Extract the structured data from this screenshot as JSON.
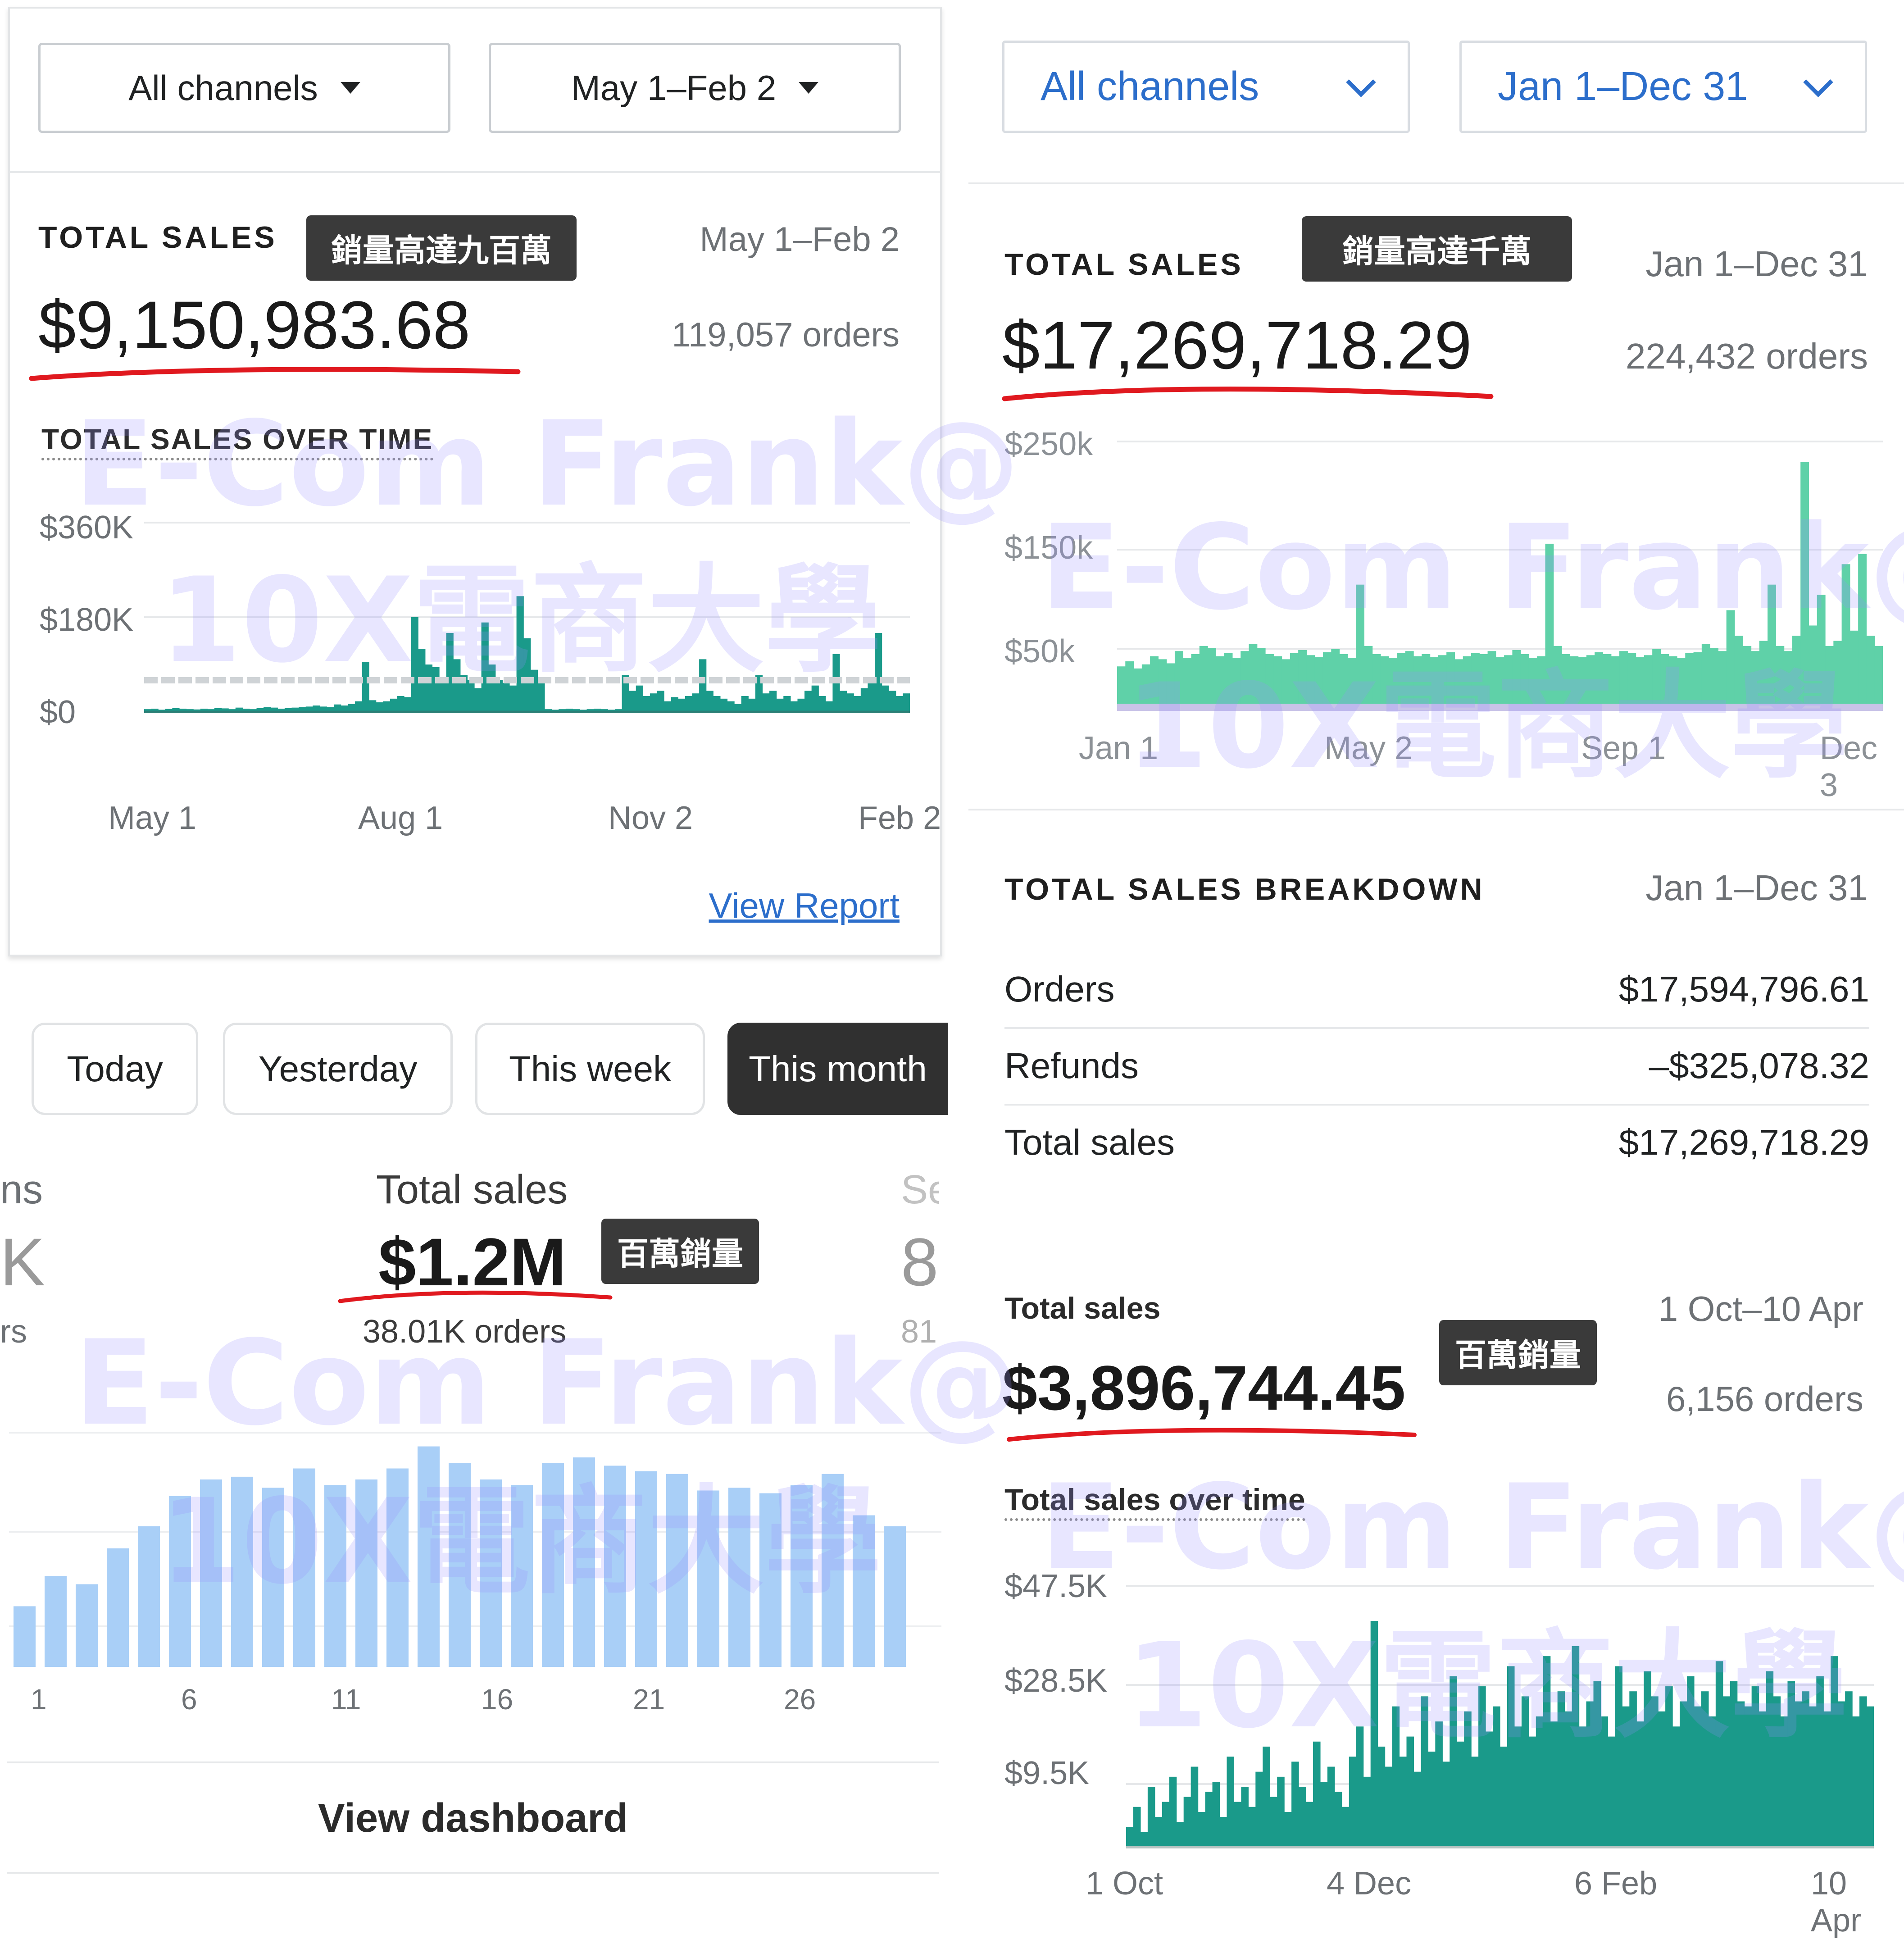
{
  "top_left": {
    "channel_dropdown": "All channels",
    "date_dropdown": "May 1–Feb 2",
    "section_title": "TOTAL SALES",
    "badge": "銷量高達九百萬",
    "date_range": "May 1–Feb 2",
    "total": "$9,150,983.68",
    "orders": "119,057 orders",
    "chart_title": "TOTAL SALES OVER TIME",
    "view_report": "View Report"
  },
  "top_right": {
    "channel_dropdown": "All channels",
    "date_dropdown": "Jan 1–Dec 31",
    "section_title": "TOTAL SALES",
    "badge": "銷量高達千萬",
    "date_range": "Jan 1–Dec 31",
    "total": "$17,269,718.29",
    "orders": "224,432 orders"
  },
  "breakdown": {
    "title": "TOTAL SALES BREAKDOWN",
    "date_range": "Jan 1–Dec 31",
    "rows": [
      {
        "label": "Orders",
        "value": "$17,594,796.61"
      },
      {
        "label": "Refunds",
        "value": "–$325,078.32"
      },
      {
        "label": "Total sales",
        "value": "$17,269,718.29"
      }
    ]
  },
  "bottom_left": {
    "tabs": [
      "Today",
      "Yesterday",
      "This week",
      "This month"
    ],
    "active_tab": "This month",
    "left_clip_label": "ns",
    "left_clip_value": "K",
    "left_clip_orders": "rs",
    "stat_label": "Total sales",
    "stat_value": "$1.2M",
    "badge": "百萬銷量",
    "stat_orders": "38.01K orders",
    "right_clip_label": "Se",
    "right_clip_value": "8",
    "right_clip_orders": "81",
    "view_dashboard": "View dashboard"
  },
  "bottom_right": {
    "title": "Total sales",
    "date_range": "1 Oct–10 Apr",
    "total": "$3,896,744.45",
    "badge": "百萬銷量",
    "orders": "6,156 orders",
    "chart_title": "Total sales over time"
  },
  "watermark": {
    "line1": "E-Com Frank@",
    "line2": "10X電商大學"
  },
  "colors": {
    "teal": "#1a9a8a",
    "mint": "#5fd1a8",
    "bar_blue": "#a9cff7",
    "red_underline": "#e0191f",
    "link": "#2c6ecb"
  },
  "chart_data": [
    {
      "type": "area",
      "title": "TOTAL SALES OVER TIME",
      "y_ticks": [
        "$360K",
        "$180K",
        "$0"
      ],
      "x_ticks": [
        "May 1",
        "Aug 1",
        "Nov 2",
        "Feb 2"
      ],
      "ylim": [
        0,
        360000
      ],
      "values": [
        5000,
        6000,
        4000,
        5500,
        7000,
        6000,
        5000,
        4500,
        6000,
        5000,
        7000,
        6500,
        5000,
        8000,
        6000,
        5000,
        7000,
        9000,
        8000,
        6000,
        7000,
        8000,
        9000,
        10000,
        12000,
        10000,
        9000,
        14000,
        12000,
        15000,
        20000,
        95000,
        22000,
        18000,
        20000,
        25000,
        30000,
        28000,
        180000,
        120000,
        90000,
        85000,
        60000,
        150000,
        100000,
        70000,
        60000,
        45000,
        170000,
        90000,
        60000,
        55000,
        50000,
        220000,
        140000,
        80000,
        60000,
        5000,
        4000,
        5000,
        6000,
        5000,
        4000,
        5000,
        6000,
        5000,
        4000,
        5000,
        70000,
        40000,
        50000,
        30000,
        35000,
        40000,
        20000,
        28000,
        25000,
        30000,
        35000,
        100000,
        40000,
        30000,
        25000,
        20000,
        15000,
        30000,
        25000,
        70000,
        35000,
        40000,
        25000,
        30000,
        20000,
        25000,
        40000,
        50000,
        30000,
        20000,
        110000,
        40000,
        35000,
        30000,
        45000,
        60000,
        150000,
        50000,
        40000,
        30000,
        35000
      ]
    },
    {
      "type": "area",
      "y_ticks": [
        "$250k",
        "$150k",
        "$50k"
      ],
      "x_ticks": [
        "Jan 1",
        "May 2",
        "Sep 1",
        "Dec 3"
      ],
      "ylim": [
        0,
        260000
      ],
      "values": [
        40000,
        45000,
        38000,
        42000,
        50000,
        47000,
        43000,
        55000,
        48000,
        52000,
        60000,
        58000,
        50000,
        53000,
        48000,
        55000,
        62000,
        58000,
        52000,
        50000,
        47000,
        53000,
        56000,
        51000,
        49000,
        54000,
        57000,
        52000,
        48000,
        120000,
        60000,
        52000,
        50000,
        48000,
        53000,
        55000,
        50000,
        52000,
        49000,
        51000,
        54000,
        47000,
        50000,
        53000,
        52000,
        55000,
        49000,
        51000,
        56000,
        52000,
        48000,
        50000,
        160000,
        60000,
        52000,
        50000,
        49000,
        51000,
        54000,
        52000,
        50000,
        55000,
        53000,
        49000,
        51000,
        57000,
        52000,
        50000,
        48000,
        53000,
        54000,
        62000,
        58000,
        55000,
        95000,
        70000,
        60000,
        55000,
        65000,
        120000,
        60000,
        55000,
        70000,
        240000,
        80000,
        110000,
        60000,
        65000,
        140000,
        75000,
        150000,
        70000,
        60000
      ]
    },
    {
      "type": "bar",
      "categories": [
        "1",
        "2",
        "3",
        "4",
        "5",
        "6",
        "7",
        "8",
        "9",
        "10",
        "11",
        "12",
        "13",
        "14",
        "15",
        "16",
        "17",
        "18",
        "19",
        "20",
        "21",
        "22",
        "23",
        "24",
        "25",
        "26",
        "27",
        "28",
        "29",
        "30"
      ],
      "x_ticks": [
        "1",
        "6",
        "11",
        "16",
        "21",
        "26"
      ],
      "values": [
        22,
        33,
        30,
        43,
        51,
        62,
        68,
        69,
        65,
        72,
        66,
        68,
        72,
        80,
        74,
        68,
        66,
        74,
        76,
        73,
        71,
        70,
        64,
        65,
        63,
        66,
        70,
        55,
        51,
        0
      ]
    },
    {
      "type": "area",
      "title": "Total sales over time",
      "y_ticks": [
        "$47.5K",
        "$28.5K",
        "$9.5K"
      ],
      "x_ticks": [
        "1 Oct",
        "4 Dec",
        "6 Feb",
        "10 Apr"
      ],
      "ylim": [
        0,
        52000
      ],
      "values": [
        4000,
        8000,
        3000,
        12000,
        6000,
        9000,
        14000,
        5000,
        10000,
        16000,
        7000,
        11000,
        13000,
        6000,
        18000,
        9000,
        12000,
        8000,
        15000,
        20000,
        10000,
        14000,
        7000,
        17000,
        12000,
        9000,
        21000,
        13000,
        16000,
        11000,
        8000,
        18000,
        24000,
        14000,
        45000,
        20000,
        16000,
        28000,
        18000,
        22000,
        15000,
        30000,
        19000,
        25000,
        17000,
        34000,
        21000,
        27000,
        18000,
        32000,
        23000,
        28000,
        20000,
        36000,
        24000,
        30000,
        22000,
        26000,
        38000,
        25000,
        31000,
        27000,
        40000,
        24000,
        29000,
        33000,
        26000,
        22000,
        36000,
        28000,
        31000,
        25000,
        35000,
        30000,
        27000,
        32000,
        24000,
        29000,
        34000,
        28000,
        31000,
        26000,
        37000,
        30000,
        33000,
        29000,
        28000,
        32000,
        27000,
        35000,
        30000,
        26000,
        33000,
        29000,
        31000,
        28000,
        34000,
        27000,
        38000,
        29000,
        31000,
        26000,
        30000,
        28000
      ]
    }
  ]
}
